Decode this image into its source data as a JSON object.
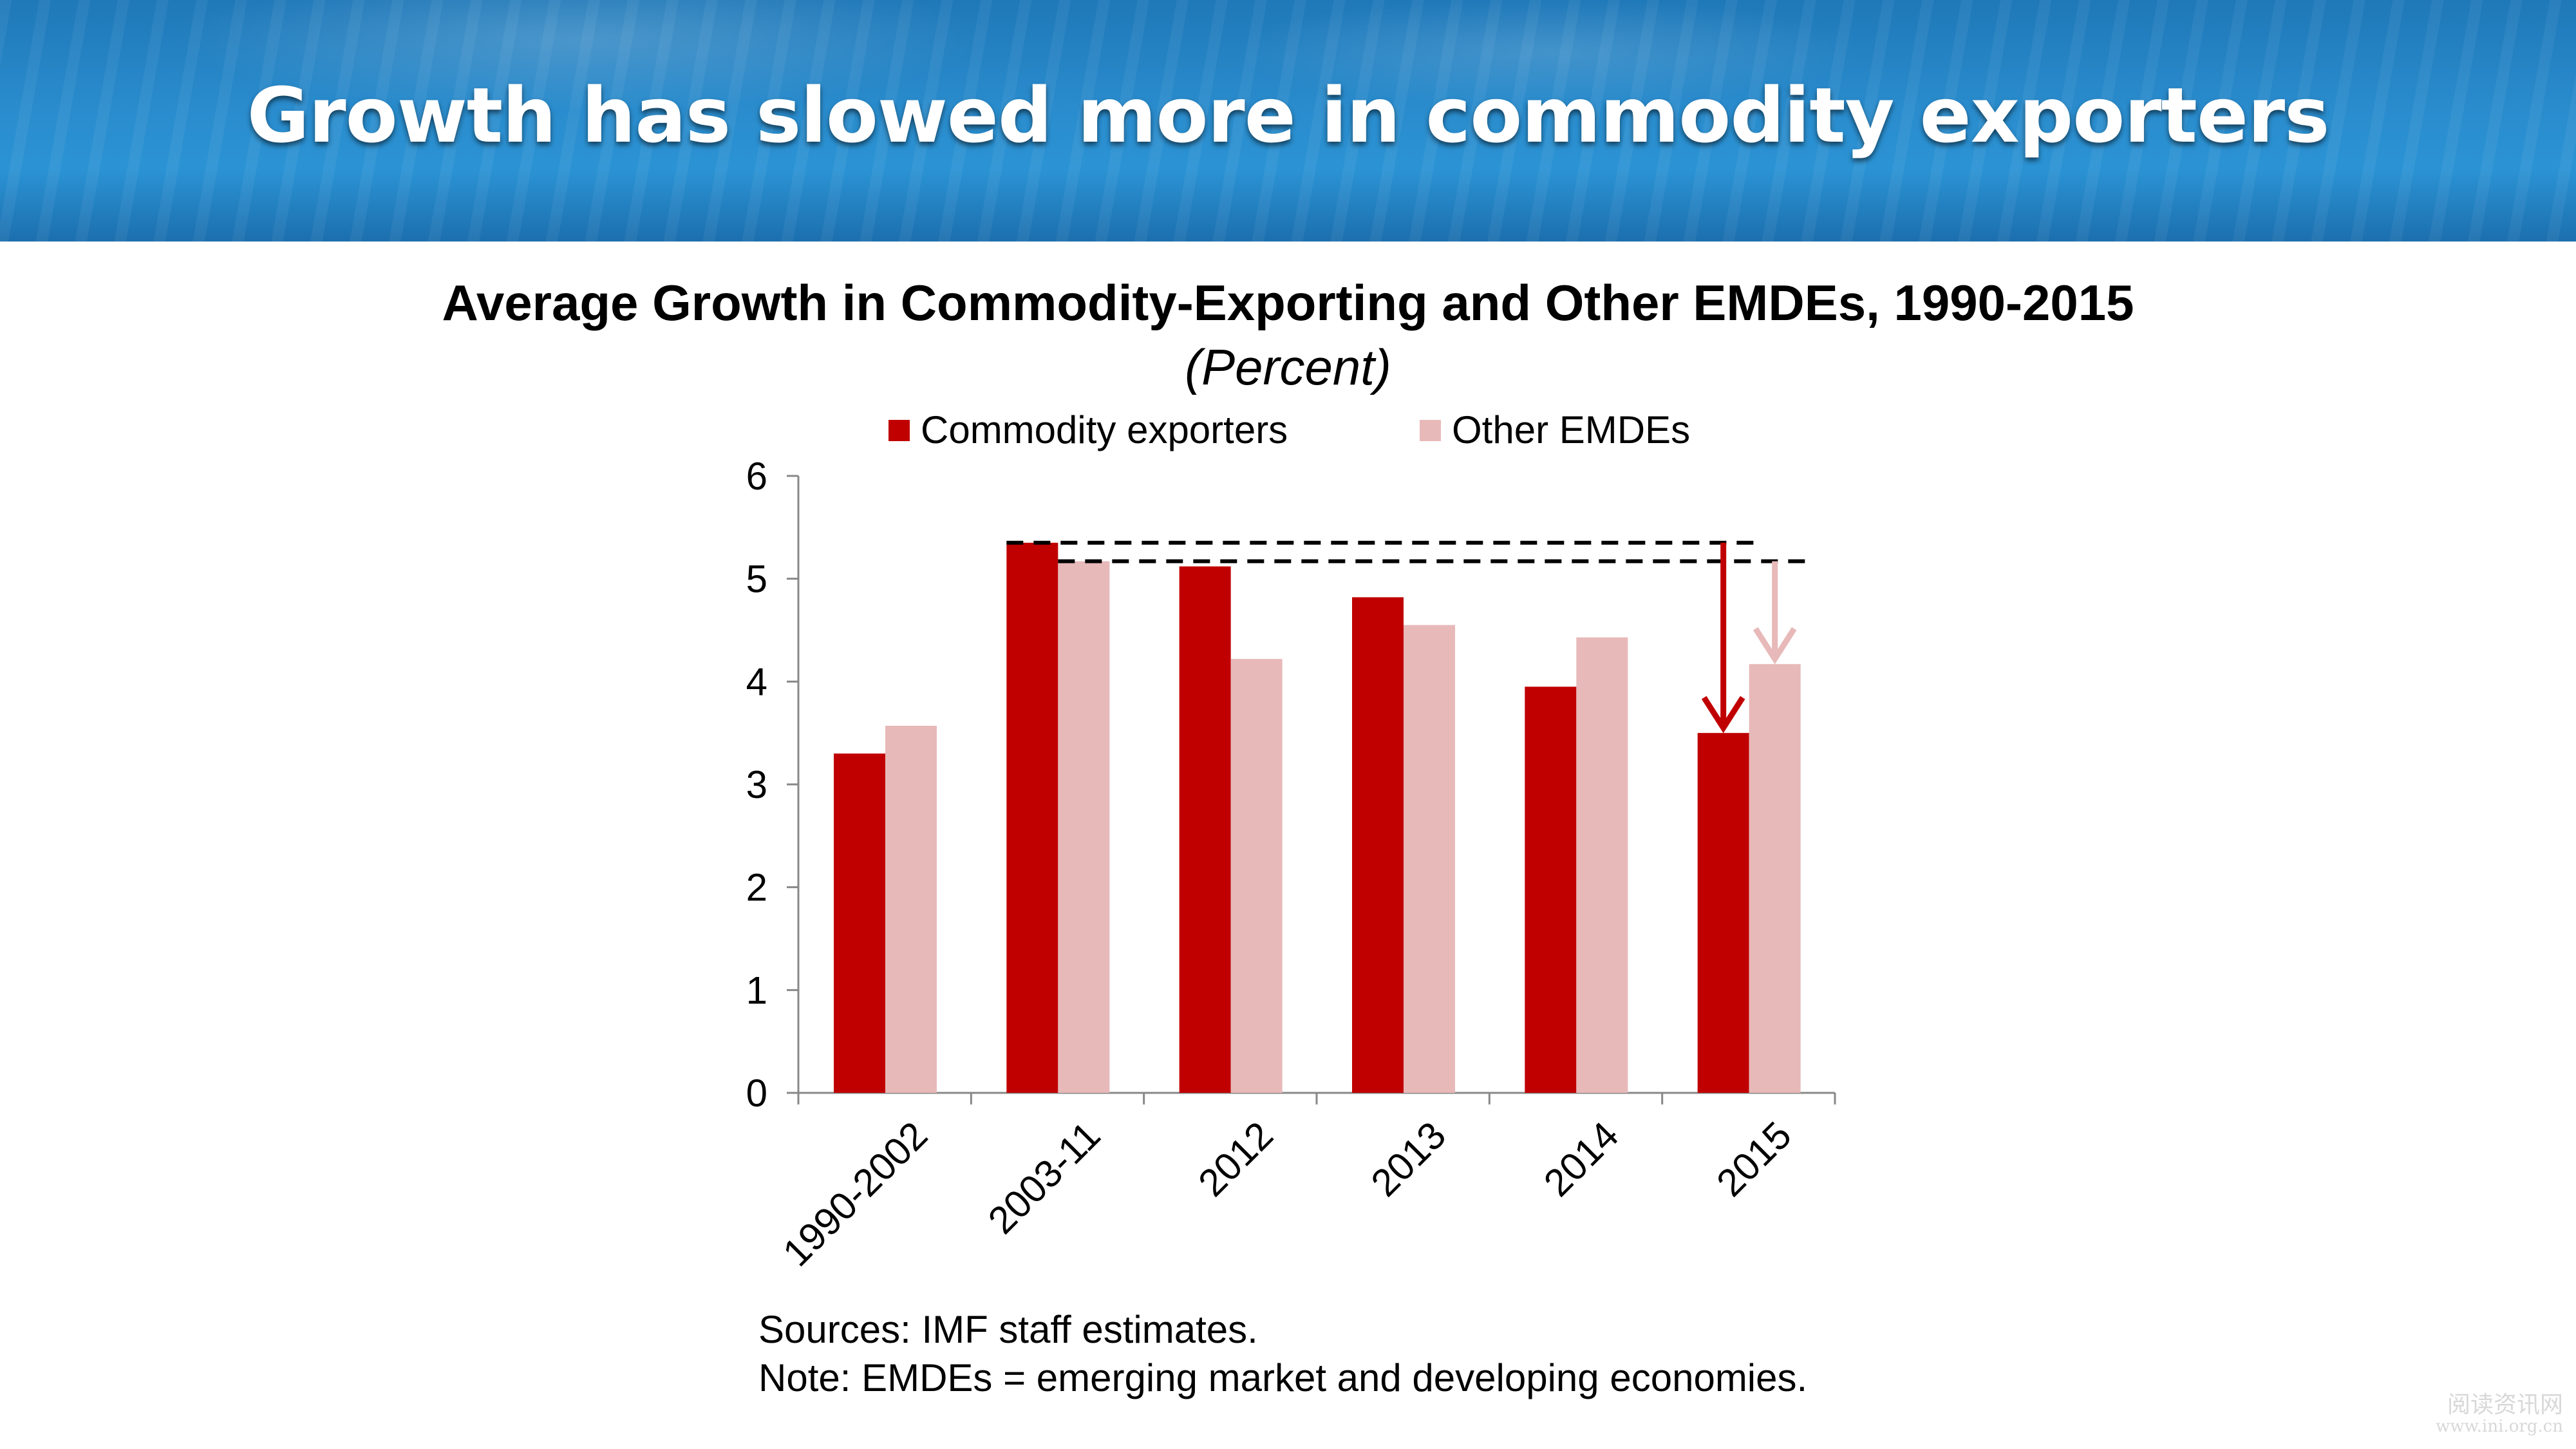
{
  "slide": {
    "title": "Growth has slowed more in commodity exporters"
  },
  "chart_data": {
    "type": "bar",
    "title": "Average Growth in Commodity-Exporting and Other EMDEs, 1990-2015",
    "subtitle": "(Percent)",
    "categories": [
      "1990-2002",
      "2003-11",
      "2012",
      "2013",
      "2014",
      "2015"
    ],
    "series": [
      {
        "name": "Commodity exporters",
        "color": "#c00000",
        "values": [
          3.3,
          5.35,
          5.12,
          4.82,
          3.95,
          3.5
        ]
      },
      {
        "name": "Other EMDEs",
        "color": "#e8b9b9",
        "values": [
          3.57,
          5.17,
          4.22,
          4.55,
          4.43,
          4.17
        ]
      }
    ],
    "ylim": [
      0,
      6
    ],
    "yticks": [
      0,
      1,
      2,
      3,
      4,
      5,
      6
    ],
    "legend": "top",
    "grid": false,
    "annotations": [
      {
        "type": "dashed-reference-line",
        "series": "Commodity exporters",
        "value": 5.35
      },
      {
        "type": "dashed-reference-line",
        "series": "Other EMDEs",
        "value": 5.17
      },
      {
        "type": "down-arrow",
        "series": "Commodity exporters",
        "category": "2015",
        "from": 5.35,
        "to": 3.5
      },
      {
        "type": "down-arrow",
        "series": "Other EMDEs",
        "category": "2015",
        "from": 5.17,
        "to": 4.17
      }
    ]
  },
  "footnotes": {
    "sources": "Sources: IMF staff estimates.",
    "note": "Note: EMDEs = emerging market and developing economies."
  },
  "watermark": {
    "line1": "阅读资讯网",
    "line2": "www.ini.org.cn"
  }
}
